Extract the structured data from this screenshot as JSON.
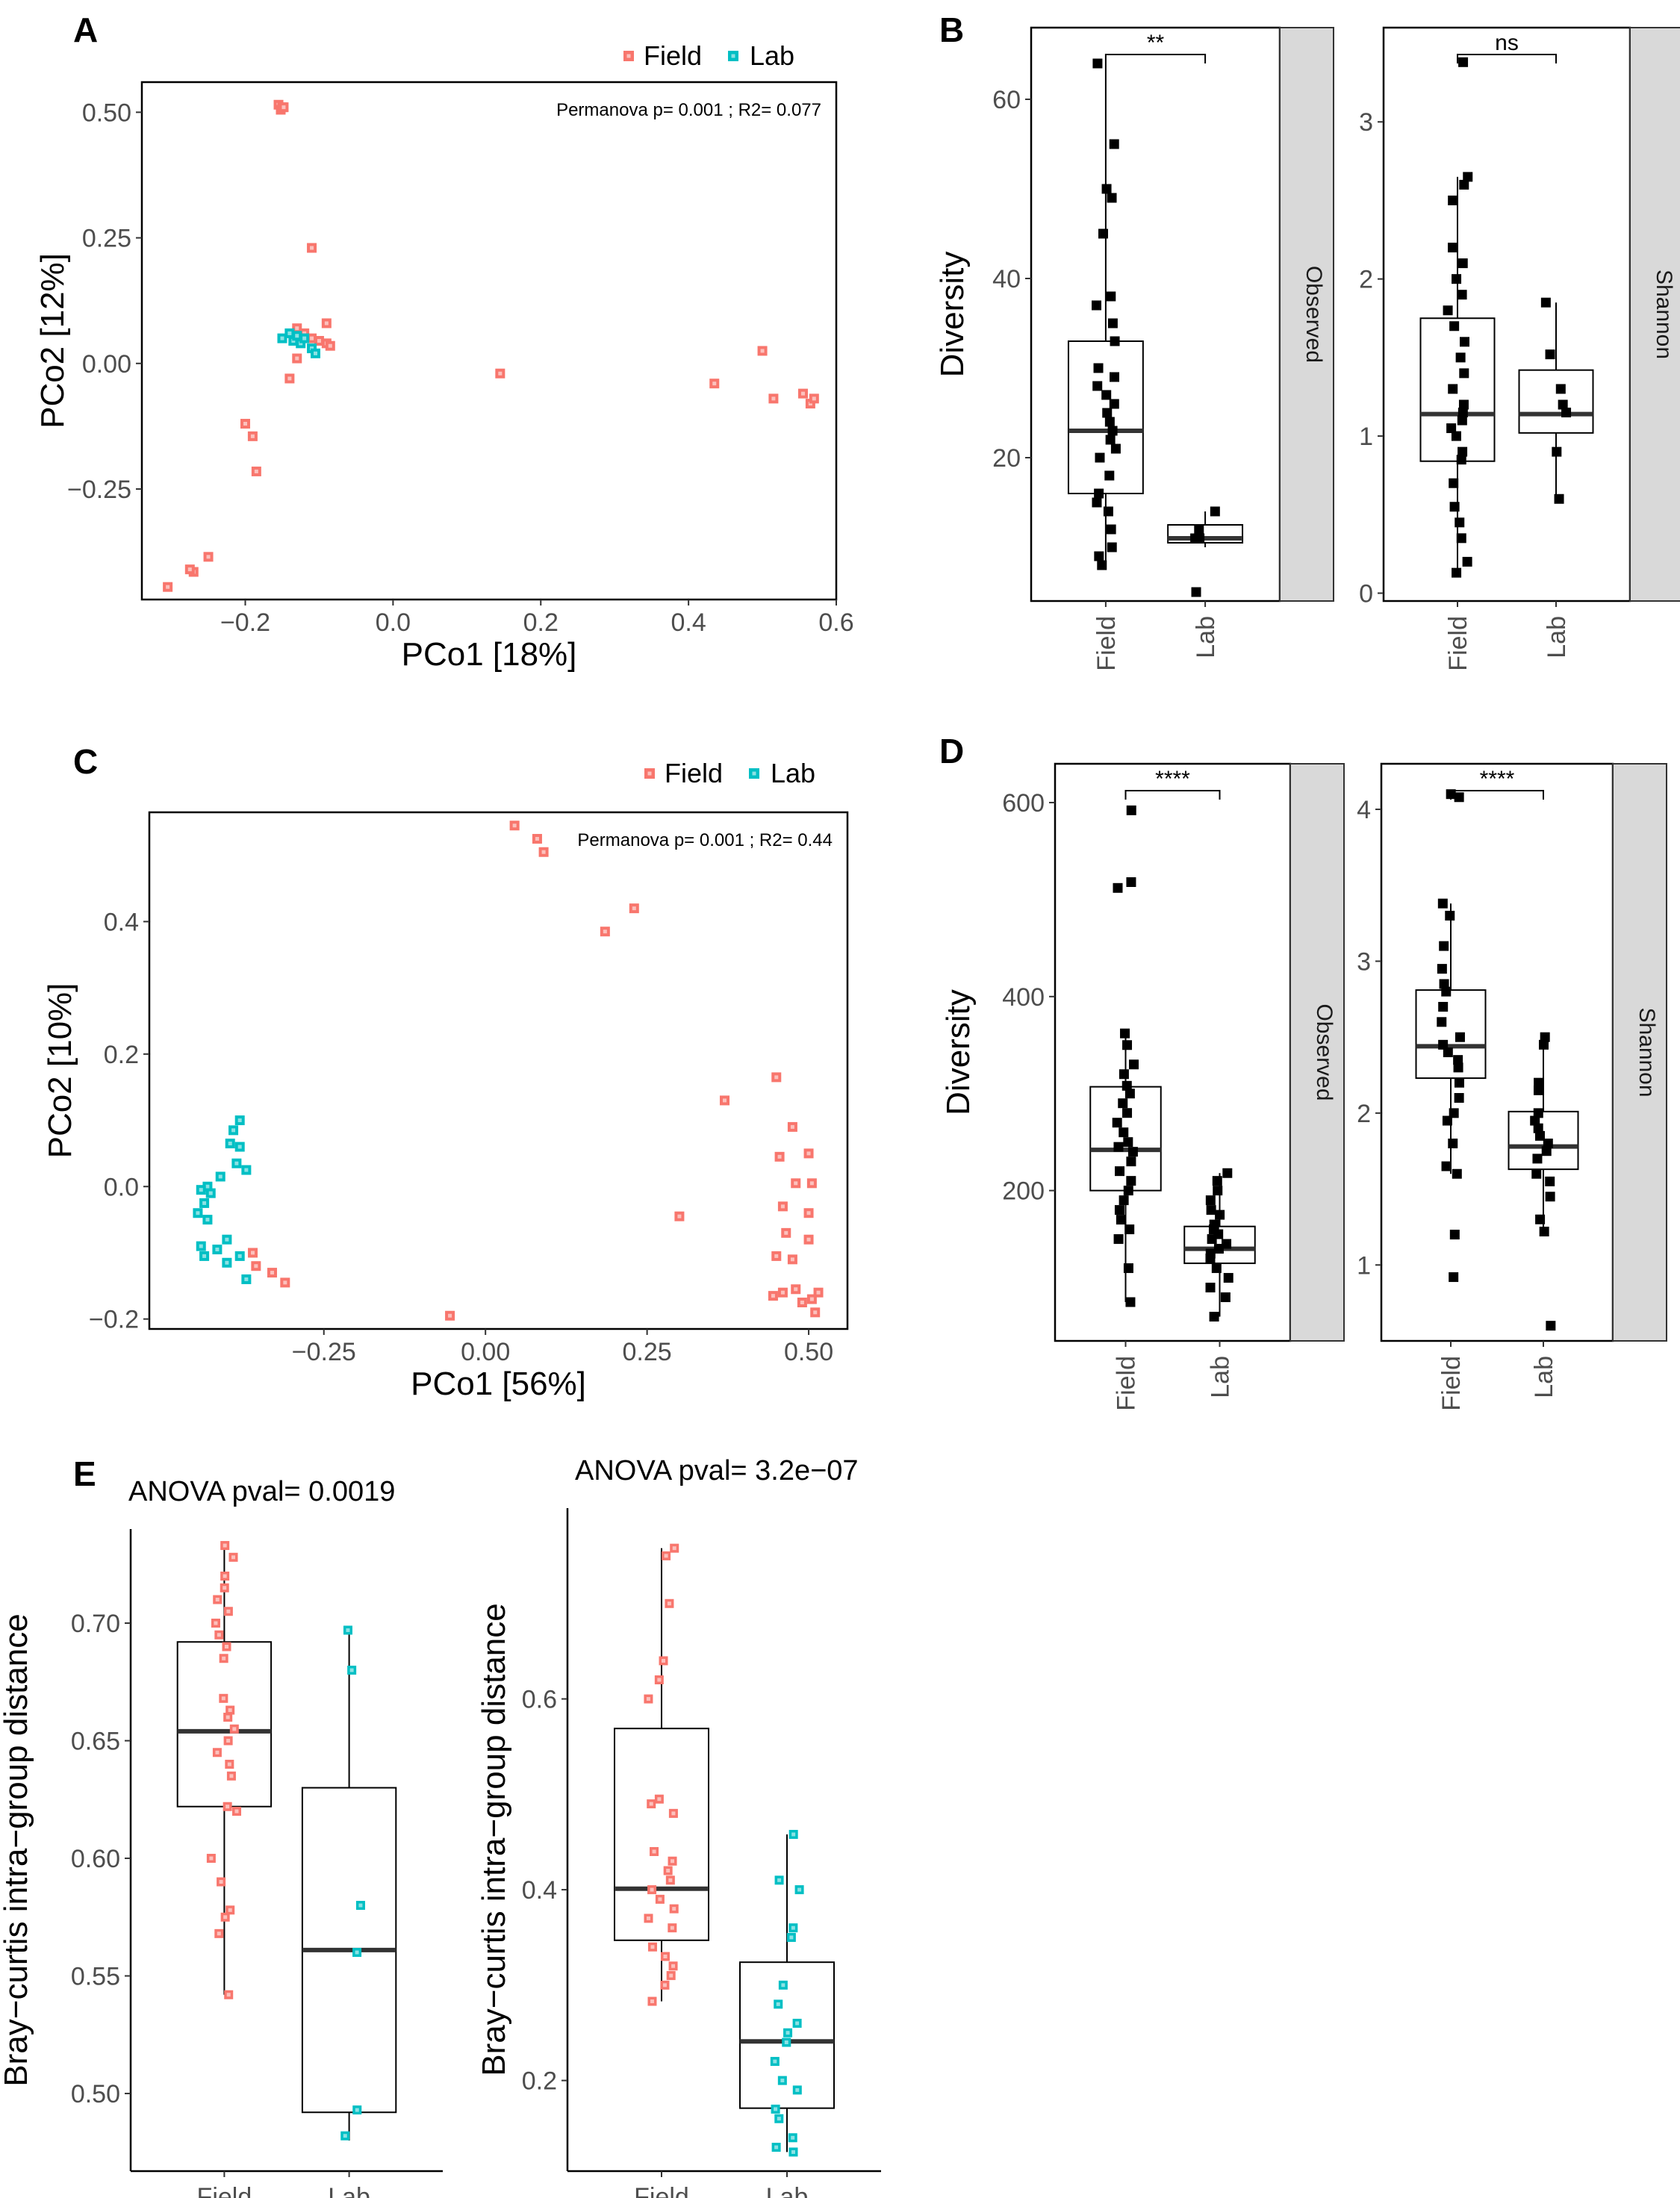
{
  "legend": {
    "field_label": "Field",
    "lab_label": "Lab",
    "field_color": "#F8766D",
    "lab_color": "#00BFC4"
  },
  "chart_data": [
    {
      "panel": "A",
      "type": "scatter",
      "annotation": "Permanova p= 0.001 ; R2= 0.077",
      "xlabel": "PCo1 [18%]",
      "ylabel": "PCo2 [12%]",
      "xlim": [
        -0.34,
        0.6
      ],
      "ylim": [
        -0.47,
        0.56
      ],
      "xticks": [
        -0.2,
        0.0,
        0.2,
        0.4,
        0.6
      ],
      "xtick_labels": [
        "−0.2",
        "0.0",
        "0.2",
        "0.4",
        "0.6"
      ],
      "yticks": [
        -0.25,
        0.0,
        0.25,
        0.5
      ],
      "ytick_labels": [
        "−0.25",
        "0.00",
        "0.25",
        "0.50"
      ],
      "series": [
        {
          "name": "Field",
          "points": [
            [
              -0.155,
              0.515
            ],
            [
              -0.15,
              0.51
            ],
            [
              -0.152,
              0.505
            ],
            [
              -0.148,
              0.51
            ],
            [
              -0.11,
              0.23
            ],
            [
              -0.13,
              0.07
            ],
            [
              -0.12,
              0.06
            ],
            [
              -0.11,
              0.05
            ],
            [
              -0.1,
              0.045
            ],
            [
              -0.09,
              0.04
            ],
            [
              -0.085,
              0.035
            ],
            [
              -0.09,
              0.08
            ],
            [
              -0.13,
              0.01
            ],
            [
              -0.14,
              -0.03
            ],
            [
              -0.2,
              -0.12
            ],
            [
              -0.19,
              -0.145
            ],
            [
              -0.185,
              -0.215
            ],
            [
              -0.25,
              -0.385
            ],
            [
              -0.27,
              -0.415
            ],
            [
              -0.275,
              -0.41
            ],
            [
              -0.305,
              -0.445
            ],
            [
              0.145,
              -0.02
            ],
            [
              0.435,
              -0.04
            ],
            [
              0.5,
              0.025
            ],
            [
              0.515,
              -0.07
            ],
            [
              0.555,
              -0.06
            ],
            [
              0.565,
              -0.08
            ],
            [
              0.57,
              -0.07
            ]
          ]
        },
        {
          "name": "Lab",
          "points": [
            [
              -0.15,
              0.05
            ],
            [
              -0.14,
              0.06
            ],
            [
              -0.135,
              0.045
            ],
            [
              -0.13,
              0.055
            ],
            [
              -0.125,
              0.04
            ],
            [
              -0.12,
              0.05
            ],
            [
              -0.11,
              0.03
            ],
            [
              -0.105,
              0.02
            ]
          ]
        }
      ]
    },
    {
      "panel": "B",
      "type": "box",
      "ylabel": "Diversity",
      "categories": [
        "Field",
        "Lab"
      ],
      "facets": [
        {
          "strip": "Observed",
          "ylim": [
            4,
            68
          ],
          "yticks": [
            20,
            40,
            60
          ],
          "ytick_labels": [
            "20",
            "40",
            "60"
          ],
          "significance": "**",
          "boxes": [
            {
              "q1": 16,
              "median": 23,
              "q3": 33,
              "whisker_low": 8,
              "whisker_high": 64
            },
            {
              "q1": 10.5,
              "median": 11,
              "q3": 12.5,
              "whisker_low": 10,
              "whisker_high": 14
            }
          ],
          "points": [
            [
              64,
              55,
              50,
              49,
              45,
              38,
              37,
              35,
              33,
              30,
              29,
              28,
              27,
              26,
              25,
              24,
              23,
              22,
              21,
              20,
              18,
              16,
              15,
              14,
              12,
              10,
              9,
              8
            ],
            [
              14,
              12,
              11,
              11,
              5
            ]
          ]
        },
        {
          "strip": "Shannon",
          "ylim": [
            -0.05,
            3.6
          ],
          "yticks": [
            0,
            1,
            2,
            3
          ],
          "ytick_labels": [
            "0",
            "1",
            "2",
            "3"
          ],
          "significance": "ns",
          "boxes": [
            {
              "q1": 0.84,
              "median": 1.14,
              "q3": 1.75,
              "whisker_low": 0.13,
              "whisker_high": 2.65
            },
            {
              "q1": 1.02,
              "median": 1.14,
              "q3": 1.42,
              "whisker_low": 0.6,
              "whisker_high": 1.85
            }
          ],
          "points": [
            [
              3.38,
              2.65,
              2.6,
              2.5,
              2.2,
              2.1,
              2.0,
              1.9,
              1.8,
              1.7,
              1.6,
              1.5,
              1.4,
              1.3,
              1.2,
              1.15,
              1.1,
              1.05,
              1.0,
              0.9,
              0.85,
              0.7,
              0.55,
              0.45,
              0.35,
              0.2,
              0.13
            ],
            [
              1.85,
              1.52,
              1.3,
              1.2,
              1.15,
              0.9,
              0.6
            ]
          ]
        }
      ]
    },
    {
      "panel": "C",
      "type": "scatter",
      "annotation": "Permanova p= 0.001 ; R2= 0.44",
      "xlabel": "PCo1 [56%]",
      "ylabel": "PCo2 [10%]",
      "xlim": [
        -0.52,
        0.56
      ],
      "ylim": [
        -0.215,
        0.565
      ],
      "xticks": [
        -0.25,
        0.0,
        0.25,
        0.5
      ],
      "xtick_labels": [
        "−0.25",
        "0.00",
        "0.25",
        "0.50"
      ],
      "yticks": [
        -0.2,
        0.0,
        0.2,
        0.4
      ],
      "ytick_labels": [
        "−0.2",
        "0.0",
        "0.2",
        "0.4"
      ],
      "series": [
        {
          "name": "Field",
          "points": [
            [
              0.045,
              0.545
            ],
            [
              0.08,
              0.525
            ],
            [
              0.09,
              0.505
            ],
            [
              0.23,
              0.42
            ],
            [
              0.185,
              0.385
            ],
            [
              0.37,
              0.13
            ],
            [
              0.45,
              0.165
            ],
            [
              0.475,
              0.09
            ],
            [
              0.5,
              0.05
            ],
            [
              0.455,
              0.045
            ],
            [
              0.505,
              0.005
            ],
            [
              0.48,
              0.005
            ],
            [
              0.46,
              -0.03
            ],
            [
              0.5,
              -0.04
            ],
            [
              0.3,
              -0.045
            ],
            [
              0.465,
              -0.07
            ],
            [
              0.5,
              -0.08
            ],
            [
              0.45,
              -0.105
            ],
            [
              0.475,
              -0.11
            ],
            [
              0.445,
              -0.165
            ],
            [
              0.46,
              -0.16
            ],
            [
              0.48,
              -0.155
            ],
            [
              0.49,
              -0.175
            ],
            [
              0.505,
              -0.17
            ],
            [
              0.515,
              -0.16
            ],
            [
              0.51,
              -0.19
            ],
            [
              -0.36,
              -0.1
            ],
            [
              -0.355,
              -0.12
            ],
            [
              -0.33,
              -0.13
            ],
            [
              -0.31,
              -0.145
            ],
            [
              -0.055,
              -0.195
            ]
          ]
        },
        {
          "name": "Lab",
          "points": [
            [
              -0.38,
              0.1
            ],
            [
              -0.39,
              0.085
            ],
            [
              -0.395,
              0.065
            ],
            [
              -0.38,
              0.06
            ],
            [
              -0.385,
              0.035
            ],
            [
              -0.37,
              0.025
            ],
            [
              -0.41,
              0.015
            ],
            [
              -0.43,
              0.0
            ],
            [
              -0.44,
              -0.005
            ],
            [
              -0.425,
              -0.01
            ],
            [
              -0.435,
              -0.025
            ],
            [
              -0.445,
              -0.04
            ],
            [
              -0.43,
              -0.05
            ],
            [
              -0.4,
              -0.08
            ],
            [
              -0.415,
              -0.095
            ],
            [
              -0.44,
              -0.09
            ],
            [
              -0.435,
              -0.105
            ],
            [
              -0.38,
              -0.105
            ],
            [
              -0.4,
              -0.115
            ],
            [
              -0.37,
              -0.14
            ]
          ]
        }
      ]
    },
    {
      "panel": "D",
      "type": "box",
      "ylabel": "Diversity",
      "categories": [
        "Field",
        "Lab"
      ],
      "facets": [
        {
          "strip": "Observed",
          "ylim": [
            45,
            640
          ],
          "yticks": [
            200,
            400,
            600
          ],
          "ytick_labels": [
            "200",
            "400",
            "600"
          ],
          "significance": "****",
          "boxes": [
            {
              "q1": 200,
              "median": 242,
              "q3": 307,
              "whisker_low": 85,
              "whisker_high": 362
            },
            {
              "q1": 125,
              "median": 140,
              "q3": 163,
              "whisker_low": 70,
              "whisker_high": 218
            }
          ],
          "points": [
            [
              592,
              518,
              512,
              362,
              350,
              330,
              320,
              308,
              300,
              290,
              280,
              270,
              260,
              250,
              245,
              240,
              230,
              220,
              210,
              200,
              190,
              180,
              170,
              160,
              150,
              120,
              85
            ],
            [
              218,
              210,
              200,
              190,
              180,
              175,
              165,
              160,
              155,
              150,
              145,
              140,
              135,
              130,
              120,
              110,
              100,
              90,
              70
            ]
          ]
        },
        {
          "strip": "Shannon",
          "ylim": [
            0.5,
            4.3
          ],
          "yticks": [
            1,
            2,
            3,
            4
          ],
          "ytick_labels": [
            "1",
            "2",
            "3",
            "4"
          ],
          "significance": "****",
          "boxes": [
            {
              "q1": 2.23,
              "median": 2.44,
              "q3": 2.81,
              "whisker_low": 1.6,
              "whisker_high": 3.38
            },
            {
              "q1": 1.63,
              "median": 1.78,
              "q3": 2.01,
              "whisker_low": 1.22,
              "whisker_high": 2.5
            }
          ],
          "points": [
            [
              4.1,
              4.08,
              3.38,
              3.3,
              3.1,
              2.95,
              2.85,
              2.8,
              2.7,
              2.6,
              2.5,
              2.45,
              2.4,
              2.35,
              2.3,
              2.2,
              2.1,
              2.0,
              1.95,
              1.8,
              1.65,
              1.6,
              1.2,
              0.92
            ],
            [
              2.5,
              2.45,
              2.2,
              2.15,
              2.0,
              1.95,
              1.9,
              1.85,
              1.8,
              1.75,
              1.7,
              1.6,
              1.55,
              1.45,
              1.3,
              1.22,
              0.6
            ]
          ]
        }
      ]
    },
    {
      "panel": "E",
      "type": "box",
      "ylabel": "Bray−curtis intra−group distance",
      "categories": [
        "Field",
        "Lab"
      ],
      "facets": [
        {
          "title": "ANOVA pval= 0.0019",
          "ylim": [
            0.467,
            0.74
          ],
          "yticks": [
            0.5,
            0.55,
            0.6,
            0.65,
            0.7
          ],
          "ytick_labels": [
            "0.50",
            "0.55",
            "0.60",
            "0.65",
            "0.70"
          ],
          "boxes": [
            {
              "q1": 0.622,
              "median": 0.654,
              "q3": 0.692,
              "whisker_low": 0.542,
              "whisker_high": 0.733
            },
            {
              "q1": 0.492,
              "median": 0.561,
              "q3": 0.63,
              "whisker_low": 0.48,
              "whisker_high": 0.697
            }
          ],
          "points": [
            [
              0.733,
              0.728,
              0.72,
              0.715,
              0.71,
              0.705,
              0.7,
              0.695,
              0.69,
              0.685,
              0.668,
              0.663,
              0.66,
              0.655,
              0.65,
              0.645,
              0.64,
              0.635,
              0.622,
              0.62,
              0.6,
              0.59,
              0.578,
              0.575,
              0.568,
              0.542
            ],
            [
              0.697,
              0.68,
              0.58,
              0.56,
              0.493,
              0.482
            ]
          ]
        },
        {
          "title": "ANOVA pval= 3.2e−07",
          "ylim": [
            0.105,
            0.8
          ],
          "yticks": [
            0.2,
            0.4,
            0.6
          ],
          "ytick_labels": [
            "0.2",
            "0.4",
            "0.6"
          ],
          "boxes": [
            {
              "q1": 0.347,
              "median": 0.401,
              "q3": 0.569,
              "whisker_low": 0.283,
              "whisker_high": 0.758
            },
            {
              "q1": 0.171,
              "median": 0.241,
              "q3": 0.324,
              "whisker_low": 0.125,
              "whisker_high": 0.458
            }
          ],
          "points": [
            [
              0.758,
              0.75,
              0.7,
              0.64,
              0.62,
              0.6,
              0.495,
              0.49,
              0.48,
              0.44,
              0.43,
              0.42,
              0.41,
              0.4,
              0.39,
              0.38,
              0.37,
              0.36,
              0.34,
              0.33,
              0.32,
              0.31,
              0.3,
              0.283
            ],
            [
              0.458,
              0.41,
              0.4,
              0.36,
              0.35,
              0.3,
              0.28,
              0.26,
              0.25,
              0.24,
              0.22,
              0.2,
              0.19,
              0.17,
              0.16,
              0.14,
              0.13,
              0.125
            ]
          ]
        }
      ]
    }
  ]
}
